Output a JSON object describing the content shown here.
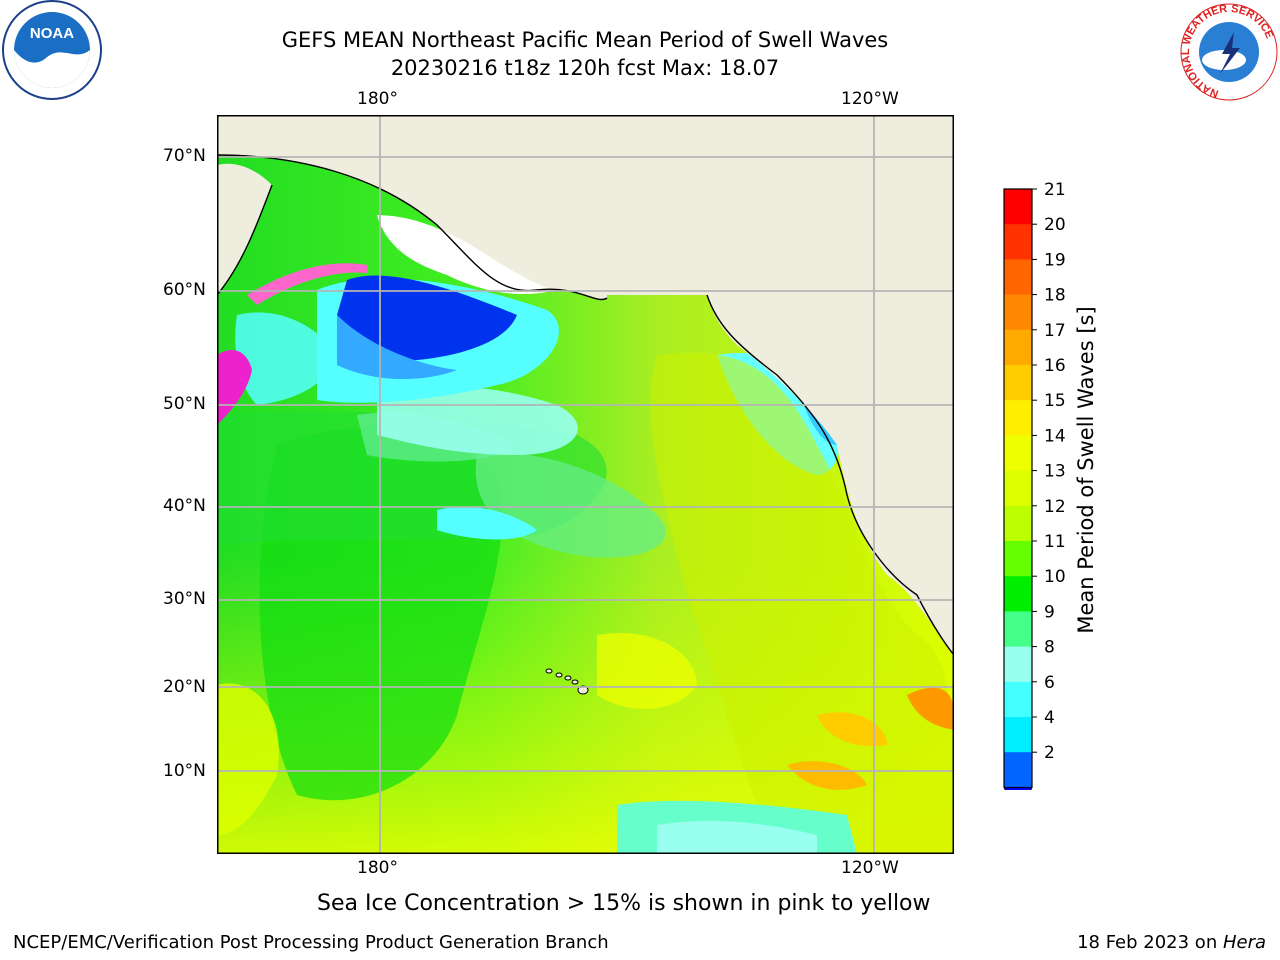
{
  "title": {
    "line1": "GEFS MEAN Northeast Pacific Mean Period of Swell Waves",
    "line2": "20230216 t18z 120h fcst   Max: 18.07"
  },
  "axes": {
    "top_lon_labels": [
      "180°",
      "120°W"
    ],
    "bottom_lon_labels": [
      "180°",
      "120°W"
    ],
    "lat_labels": [
      "70°N",
      "60°N",
      "50°N",
      "40°N",
      "30°N",
      "20°N",
      "10°N"
    ],
    "grid": true
  },
  "colorbar": {
    "label": "Mean Period of Swell Waves [s]",
    "ticks": [
      "21",
      "20",
      "19",
      "18",
      "17",
      "16",
      "15",
      "14",
      "13",
      "12",
      "11",
      "10",
      "9",
      "8",
      "6",
      "4",
      "2"
    ],
    "colors": [
      "#ff0000",
      "#ff3300",
      "#ff6600",
      "#ff8800",
      "#ffaa00",
      "#ffcc00",
      "#ffee00",
      "#eeff00",
      "#ddff00",
      "#bbff00",
      "#66ff00",
      "#00ee00",
      "#44ff88",
      "#99ffee",
      "#44ffff",
      "#00eeff",
      "#0066ff"
    ],
    "extend_color": "#0000ee"
  },
  "caption": "Sea Ice Concentration > 15% is shown in pink to yellow",
  "footer": {
    "left": "NCEP/EMC/Verification Post Processing Product Generation Branch",
    "right_prefix": "18 Feb 2023 on ",
    "right_italic": "Hera"
  },
  "logos": {
    "noaa": "NOAA",
    "nws_ring": "NATIONAL WEATHER SERVICE"
  },
  "colors": {
    "land": "#efedde",
    "grid": "#b4b4b4"
  }
}
